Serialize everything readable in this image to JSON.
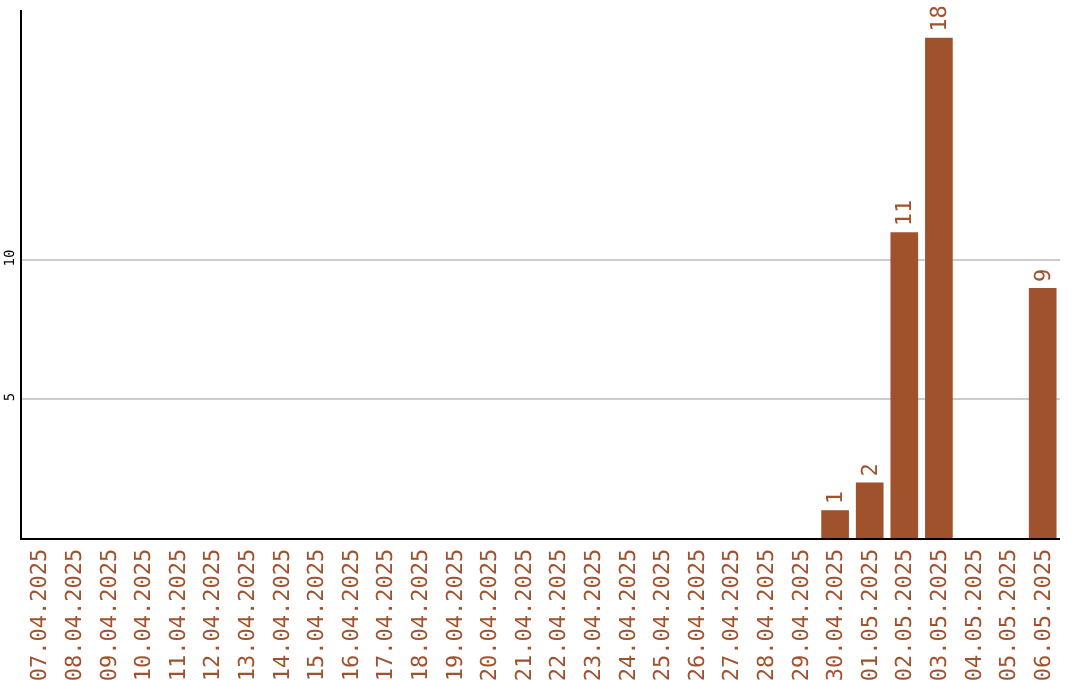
{
  "chart_data": {
    "type": "bar",
    "categories": [
      "07.04.2025",
      "08.04.2025",
      "09.04.2025",
      "10.04.2025",
      "11.04.2025",
      "12.04.2025",
      "13.04.2025",
      "14.04.2025",
      "15.04.2025",
      "16.04.2025",
      "17.04.2025",
      "18.04.2025",
      "19.04.2025",
      "20.04.2025",
      "21.04.2025",
      "22.04.2025",
      "23.04.2025",
      "24.04.2025",
      "25.04.2025",
      "26.04.2025",
      "27.04.2025",
      "28.04.2025",
      "29.04.2025",
      "30.04.2025",
      "01.05.2025",
      "02.05.2025",
      "03.05.2025",
      "04.05.2025",
      "05.05.2025",
      "06.05.2025"
    ],
    "values": [
      0,
      0,
      0,
      0,
      0,
      0,
      0,
      0,
      0,
      0,
      0,
      0,
      0,
      0,
      0,
      0,
      0,
      0,
      0,
      0,
      0,
      0,
      0,
      1,
      2,
      11,
      18,
      0,
      0,
      9
    ],
    "value_labels": [
      null,
      null,
      null,
      null,
      null,
      null,
      null,
      null,
      null,
      null,
      null,
      null,
      null,
      null,
      null,
      null,
      null,
      null,
      null,
      null,
      null,
      null,
      null,
      "1",
      "2",
      "11",
      "18",
      null,
      null,
      "9"
    ],
    "color": "#a0522d",
    "ylim": [
      0,
      19
    ],
    "yticks": [
      5,
      10
    ],
    "grid": "y",
    "legend": false
  }
}
